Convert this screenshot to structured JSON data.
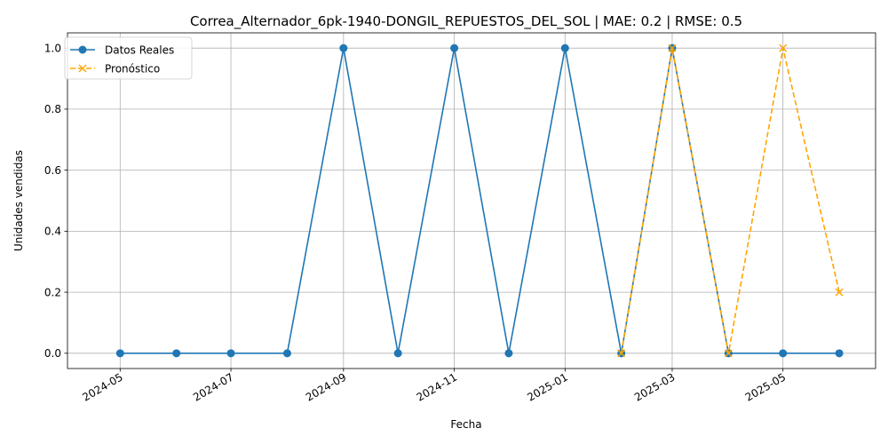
{
  "chart_data": {
    "type": "line",
    "title": "Correa_Alternador_6pk-1940-DONGIL_REPUESTOS_DEL_SOL | MAE: 0.2 | RMSE: 0.5",
    "xlabel": "Fecha",
    "ylabel": "Unidades vendidas",
    "x_ticks": [
      "2024-05",
      "2024-07",
      "2024-09",
      "2024-11",
      "2025-01",
      "2025-03",
      "2025-05"
    ],
    "y_ticks": [
      "0.0",
      "0.2",
      "0.4",
      "0.6",
      "0.8",
      "1.0"
    ],
    "ylim": [
      -0.05,
      1.05
    ],
    "xlim": [
      "2024-04-02",
      "2025-06-21"
    ],
    "grid": true,
    "legend_position": "upper-left",
    "series": [
      {
        "name": "Datos Reales",
        "color": "#1f77b4",
        "linestyle": "solid",
        "marker": "circle",
        "x": [
          "2024-05-01",
          "2024-06-01",
          "2024-07-01",
          "2024-08-01",
          "2024-09-01",
          "2024-10-01",
          "2024-11-01",
          "2024-12-01",
          "2025-01-01",
          "2025-02-01",
          "2025-03-01",
          "2025-04-01",
          "2025-05-01",
          "2025-06-01"
        ],
        "values": [
          0,
          0,
          0,
          0,
          1,
          0,
          1,
          0,
          1,
          0,
          1,
          0,
          0,
          0
        ]
      },
      {
        "name": "Pronóstico",
        "color": "#ffa500",
        "linestyle": "dashed",
        "marker": "x",
        "x": [
          "2025-02-01",
          "2025-03-01",
          "2025-04-01",
          "2025-05-01",
          "2025-06-01"
        ],
        "values": [
          0,
          1,
          0,
          1,
          0.2
        ]
      }
    ]
  }
}
